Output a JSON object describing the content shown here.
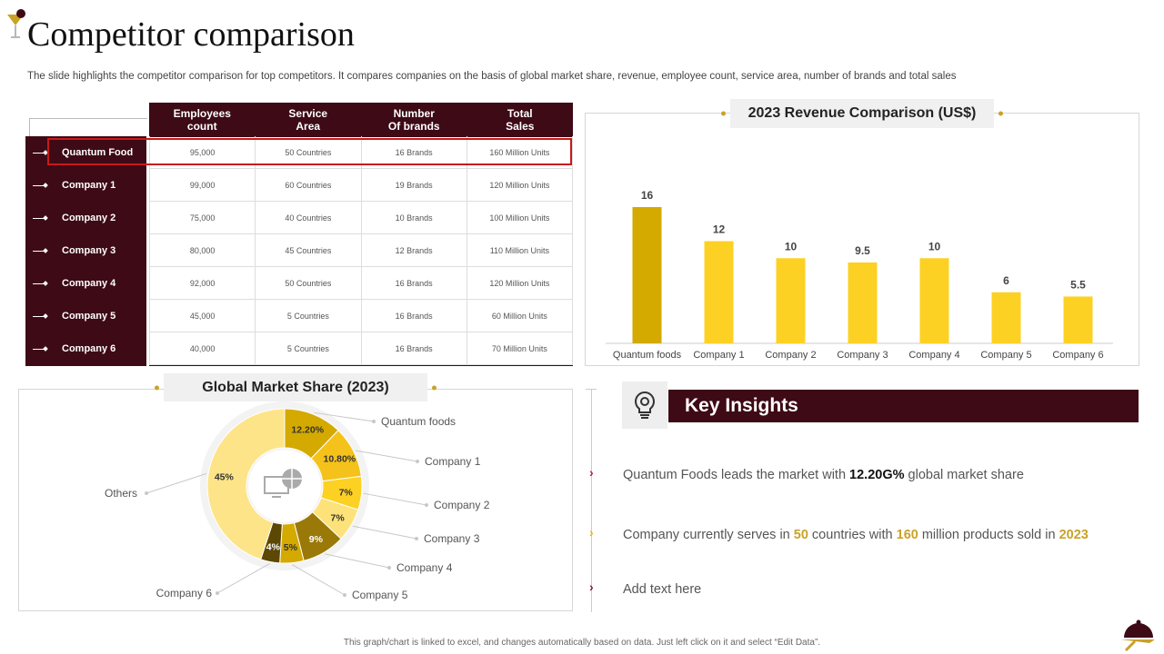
{
  "title": "Competitor comparison",
  "subtitle": "The slide highlights the competitor comparison for top competitors. It compares companies on the basis of global market share, revenue, employee count, service area, number of brands and total sales",
  "table": {
    "headers": [
      "Employees count",
      "Service Area",
      "Number Of brands",
      "Total Sales"
    ],
    "header_lines": [
      [
        "Employees",
        "count"
      ],
      [
        "Service",
        "Area"
      ],
      [
        "Number",
        "Of brands"
      ],
      [
        "Total",
        "Sales"
      ]
    ],
    "rows": [
      {
        "name": "Quantum Food",
        "cells": [
          "95,000",
          "50 Countries",
          "16 Brands",
          "160 Million Units"
        ]
      },
      {
        "name": "Company 1",
        "cells": [
          "99,000",
          "60 Countries",
          "19 Brands",
          "120 Million Units"
        ]
      },
      {
        "name": "Company 2",
        "cells": [
          "75,000",
          "40 Countries",
          "10 Brands",
          "100 Million Units"
        ]
      },
      {
        "name": "Company 3",
        "cells": [
          "80,000",
          "45 Countries",
          "12 Brands",
          "110 Million Units"
        ]
      },
      {
        "name": "Company 4",
        "cells": [
          "92,000",
          "50 Countries",
          "16 Brands",
          "120 Million Units"
        ]
      },
      {
        "name": "Company 5",
        "cells": [
          "45,000",
          "5 Countries",
          "16 Brands",
          "60 Million Units"
        ]
      },
      {
        "name": "Company 6",
        "cells": [
          "40,000",
          "5 Countries",
          "16 Brands",
          "70 Million Units"
        ]
      }
    ]
  },
  "chart_data": [
    {
      "type": "bar",
      "title": "2023 Revenue Comparison (US$)",
      "categories": [
        "Quantum foods",
        "Company 1",
        "Company 2",
        "Company 3",
        "Company 4",
        "Company 5",
        "Company 6"
      ],
      "values": [
        16,
        12,
        10,
        9.5,
        10,
        6,
        5.5
      ],
      "value_labels": [
        "16",
        "12",
        "10",
        "9.5",
        "10",
        "6",
        "5.5"
      ],
      "colors": [
        "#d4a900",
        "#fdd123",
        "#fdd123",
        "#fdd123",
        "#fdd123",
        "#fdd123",
        "#fdd123"
      ],
      "ylim": [
        0,
        16
      ]
    },
    {
      "type": "pie",
      "title": "Global Market Share (2023)",
      "labels": [
        "Quantum foods",
        "Company 1",
        "Company 2",
        "Company 3",
        "Company 4",
        "Company 5",
        "Company 6",
        "Others"
      ],
      "values": [
        12.2,
        10.8,
        7,
        7,
        9,
        5,
        4,
        45
      ],
      "value_labels": [
        "12.20%",
        "10.80%",
        "7%",
        "7%",
        "9%",
        "5%",
        "4%",
        "45%"
      ],
      "colors": [
        "#d4a900",
        "#f4c21b",
        "#fdd123",
        "#fde27a",
        "#9a7908",
        "#d4a900",
        "#5c4804",
        "#fde488"
      ]
    }
  ],
  "insights": {
    "title": "Key Insights",
    "item1": {
      "before": "Quantum Foods leads the market with ",
      "highlight": "12.20G%",
      "after": " global market share"
    },
    "item2": {
      "before": "Company currently serves in ",
      "h1": "50",
      "mid1": " countries with ",
      "h2": "160",
      "mid2": " million products sold in ",
      "h3": "2023"
    },
    "item3": "Add text here"
  },
  "footer": "This graph/chart is linked to excel, and changes automatically based on data. Just left click on it and select “Edit Data”."
}
